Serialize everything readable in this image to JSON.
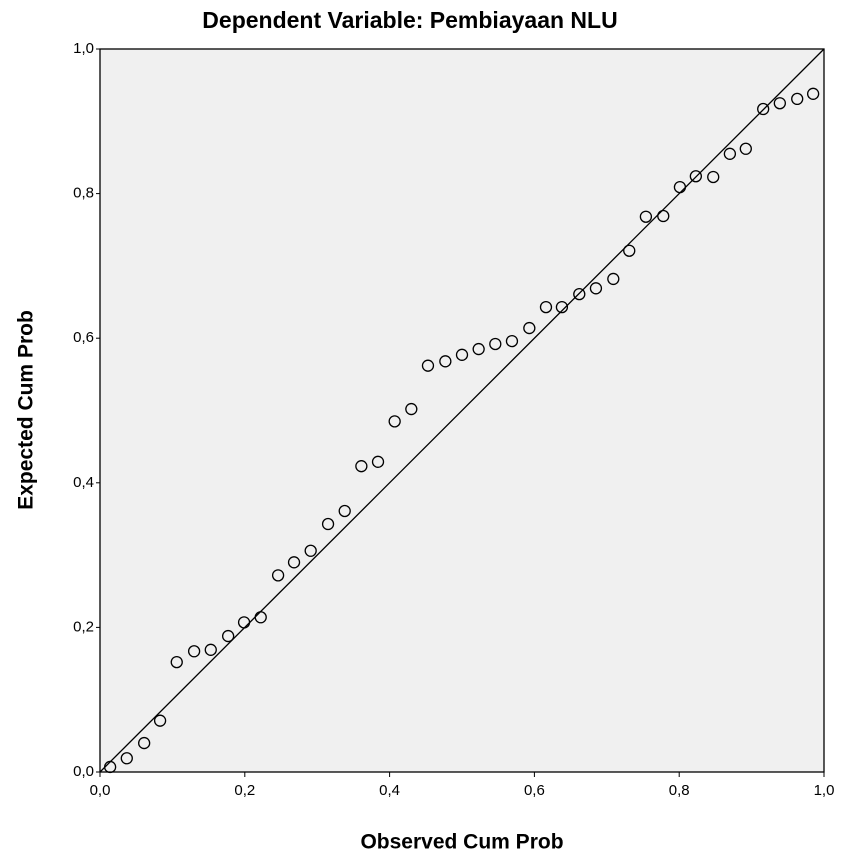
{
  "chart_data": {
    "type": "scatter",
    "title": "Dependent Variable: Pembiayaan NLU",
    "x_label": "Observed Cum Prob",
    "y_label": "Expected Cum Prob",
    "x": [
      0.014,
      0.037,
      0.061,
      0.083,
      0.106,
      0.13,
      0.153,
      0.177,
      0.199,
      0.222,
      0.246,
      0.268,
      0.291,
      0.315,
      0.338,
      0.361,
      0.384,
      0.407,
      0.43,
      0.453,
      0.477,
      0.5,
      0.523,
      0.546,
      0.569,
      0.593,
      0.616,
      0.638,
      0.662,
      0.685,
      0.709,
      0.731,
      0.754,
      0.778,
      0.801,
      0.823,
      0.847,
      0.87,
      0.892,
      0.916,
      0.939,
      0.963,
      0.985
    ],
    "values": [
      0.007,
      0.019,
      0.04,
      0.071,
      0.152,
      0.167,
      0.169,
      0.188,
      0.207,
      0.214,
      0.272,
      0.29,
      0.306,
      0.343,
      0.361,
      0.423,
      0.429,
      0.485,
      0.502,
      0.562,
      0.568,
      0.577,
      0.585,
      0.592,
      0.596,
      0.614,
      0.643,
      0.643,
      0.661,
      0.669,
      0.682,
      0.721,
      0.768,
      0.769,
      0.809,
      0.824,
      0.823,
      0.855,
      0.862,
      0.917,
      0.925,
      0.931,
      0.938
    ],
    "color": "#000000",
    "xlim": [
      0,
      1
    ],
    "ylim": [
      0,
      1
    ],
    "xticks": [
      {
        "value": 0,
        "label": "0,0"
      },
      {
        "value": 0.2,
        "label": "0,2"
      },
      {
        "value": 0.4,
        "label": "0,4"
      },
      {
        "value": 0.6,
        "label": "0,6"
      },
      {
        "value": 0.8,
        "label": "0,8"
      },
      {
        "value": 1,
        "label": "1,0"
      }
    ],
    "yticks": [
      {
        "value": 0,
        "label": "0,0"
      },
      {
        "value": 0.2,
        "label": "0,2"
      },
      {
        "value": 0.4,
        "label": "0,4"
      },
      {
        "value": 0.6,
        "label": "0,6"
      },
      {
        "value": 0.8,
        "label": "0,8"
      },
      {
        "value": 1,
        "label": "1,0"
      }
    ],
    "grid": false
  }
}
